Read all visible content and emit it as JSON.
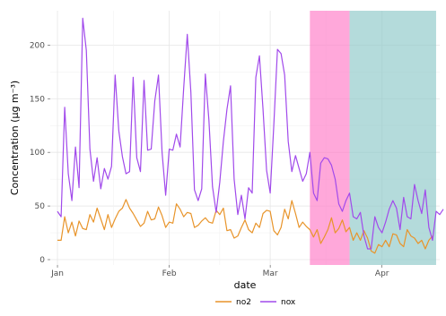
{
  "chart_data": {
    "type": "line",
    "xlabel": "date",
    "ylabel": "Concentration (µg m⁻³)",
    "x_ticks": [
      {
        "label": "Jan",
        "day": 0
      },
      {
        "label": "Feb",
        "day": 31
      },
      {
        "label": "Mar",
        "day": 59
      },
      {
        "label": "Apr",
        "day": 90
      }
    ],
    "y_ticks": [
      0,
      50,
      100,
      150,
      200
    ],
    "xlim": [
      -2,
      106
    ],
    "ylim": [
      -5,
      232
    ],
    "grid": true,
    "legend_position": "bottom",
    "shaded_periods": [
      {
        "start_day": 70,
        "end_day": 81,
        "color": "#ff79c6"
      },
      {
        "start_day": 81,
        "end_day": 105,
        "color": "#8cc8c8"
      }
    ],
    "series": [
      {
        "name": "no2",
        "color": "#e8942a",
        "values": [
          18,
          18,
          40,
          25,
          35,
          22,
          36,
          29,
          28,
          42,
          35,
          48,
          38,
          28,
          42,
          30,
          38,
          45,
          48,
          56,
          48,
          43,
          37,
          31,
          34,
          45,
          37,
          38,
          49,
          41,
          30,
          35,
          34,
          52,
          47,
          40,
          44,
          43,
          30,
          32,
          36,
          39,
          35,
          34,
          46,
          42,
          48,
          27,
          28,
          20,
          22,
          30,
          37,
          28,
          25,
          34,
          30,
          43,
          46,
          45,
          27,
          23,
          30,
          47,
          38,
          55,
          43,
          30,
          35,
          31,
          28,
          21,
          28,
          15,
          21,
          28,
          39,
          25,
          29,
          37,
          26,
          30,
          18,
          25,
          18,
          27,
          20,
          8,
          6,
          14,
          12,
          18,
          12,
          24,
          23,
          15,
          12,
          28,
          22,
          20,
          15,
          18,
          10,
          18,
          22
        ]
      },
      {
        "name": "nox",
        "color": "#a14aeb",
        "values": [
          45,
          40,
          142,
          80,
          55,
          105,
          67,
          225,
          195,
          103,
          73,
          95,
          66,
          85,
          75,
          87,
          172,
          120,
          96,
          80,
          82,
          170,
          95,
          82,
          167,
          102,
          103,
          148,
          172,
          100,
          60,
          103,
          102,
          117,
          105,
          160,
          210,
          156,
          65,
          55,
          66,
          173,
          130,
          68,
          44,
          72,
          110,
          140,
          162,
          75,
          42,
          60,
          38,
          67,
          62,
          170,
          190,
          140,
          83,
          62,
          125,
          196,
          192,
          172,
          110,
          82,
          97,
          85,
          73,
          80,
          100,
          62,
          55,
          90,
          95,
          94,
          88,
          75,
          52,
          45,
          55,
          62,
          40,
          38,
          44,
          22,
          10,
          10,
          40,
          30,
          25,
          35,
          47,
          55,
          48,
          28,
          58,
          40,
          38,
          70,
          55,
          43,
          65,
          30,
          18,
          45,
          42,
          47
        ]
      }
    ]
  }
}
